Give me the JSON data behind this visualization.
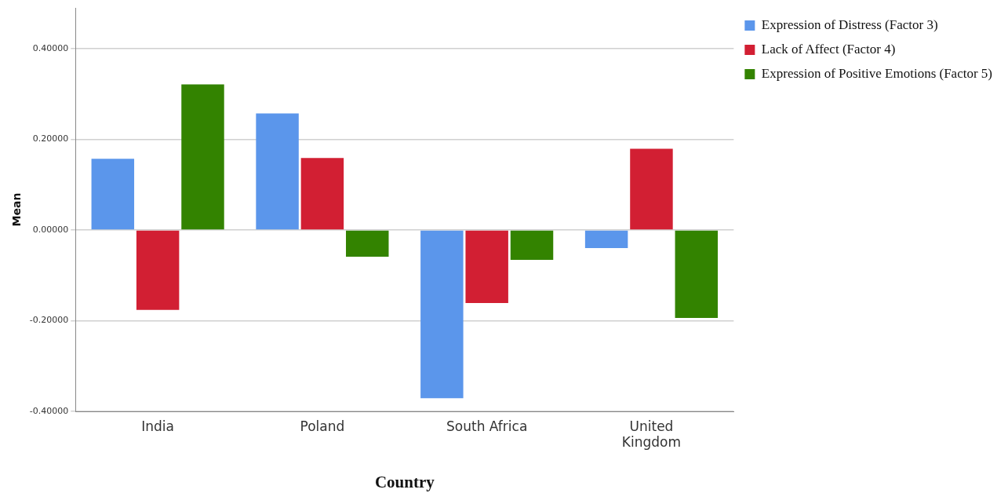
{
  "chart_data": {
    "type": "bar",
    "xlabel": "Country",
    "ylabel": "Mean",
    "categories": [
      "India",
      "Poland",
      "South Africa",
      "United Kingdom"
    ],
    "series": [
      {
        "name": "Expression of Distress (Factor 3)",
        "color": "#5b96eb",
        "values": [
          0.157,
          0.257,
          -0.371,
          -0.04
        ]
      },
      {
        "name": "Lack of Affect (Factor 4)",
        "color": "#d21f33",
        "values": [
          -0.176,
          0.159,
          -0.161,
          0.179
        ]
      },
      {
        "name": "Expression of Positive Emotions (Factor 5)",
        "color": "#338300",
        "values": [
          0.321,
          -0.059,
          -0.066,
          -0.194
        ]
      }
    ],
    "ylim": [
      -0.4,
      0.49
    ],
    "yticks": [
      {
        "value": -0.4,
        "label": "-0.40000"
      },
      {
        "value": -0.2,
        "label": "-0.20000"
      },
      {
        "value": 0,
        "label": "0.00000"
      },
      {
        "value": 0.2,
        "label": "0.20000"
      },
      {
        "value": 0.4,
        "label": "0.40000"
      }
    ],
    "grid": "y",
    "legend": "top right"
  }
}
